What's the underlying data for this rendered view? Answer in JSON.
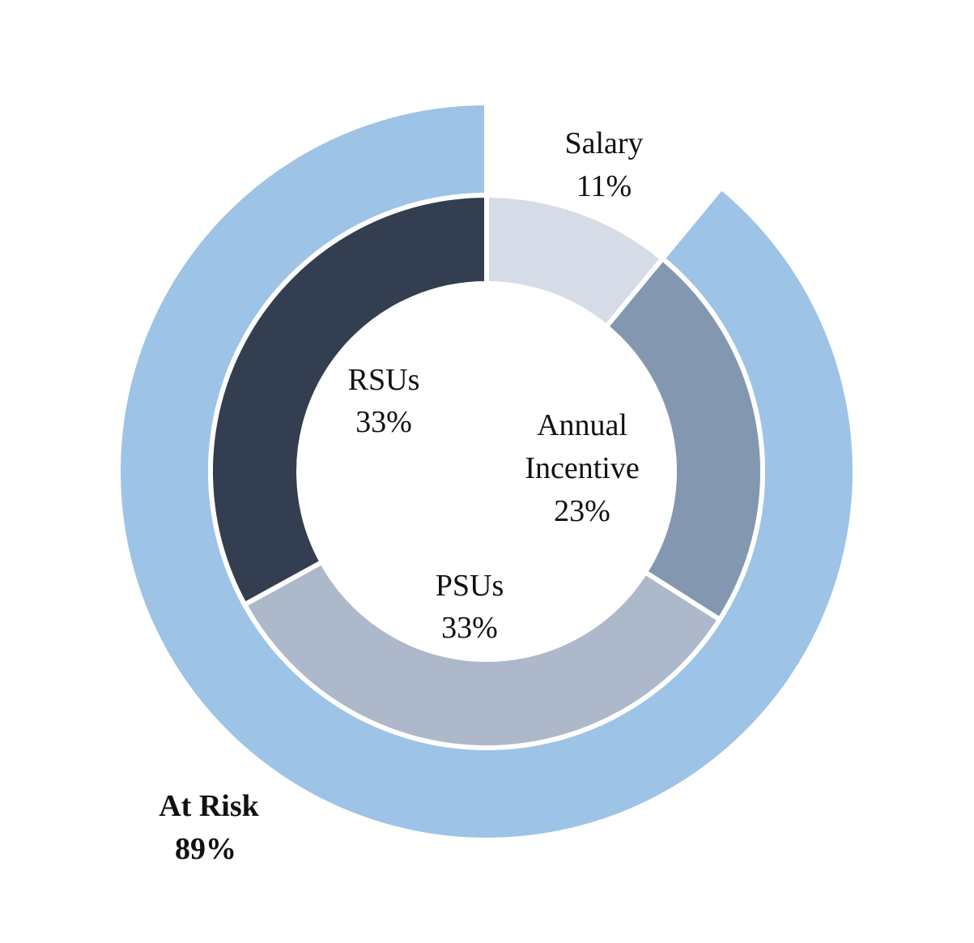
{
  "chart_data": {
    "type": "pie",
    "subtype": "nested-donut",
    "title": "",
    "rings": [
      {
        "name": "inner",
        "categories": [
          "Salary",
          "Annual Incentive",
          "PSUs",
          "RSUs"
        ],
        "values": [
          11,
          23,
          33,
          33
        ],
        "labels": [
          "11%",
          "23%",
          "33%",
          "33%"
        ],
        "colors": [
          "#d5dce7",
          "#8497b0",
          "#adb9ca",
          "#333f50"
        ]
      },
      {
        "name": "outer",
        "categories": [
          "Salary (not at risk)",
          "At Risk"
        ],
        "values": [
          11,
          89
        ],
        "labels": [
          "",
          "89%"
        ],
        "colors": [
          "#ffffff",
          "#9dc3e6"
        ]
      }
    ],
    "annotations": [
      {
        "text": "Salary",
        "value": "11%"
      },
      {
        "text": "Annual Incentive",
        "value": "23%"
      },
      {
        "text": "PSUs",
        "value": "33%"
      },
      {
        "text": "RSUs",
        "value": "33%"
      },
      {
        "text": "At Risk",
        "value": "89%",
        "bold": true
      }
    ],
    "legend": "none"
  },
  "labels": {
    "salary": {
      "name": "Salary",
      "pct": "11%"
    },
    "annual": {
      "name1": "Annual",
      "name2": "Incentive",
      "pct": "23%"
    },
    "psus": {
      "name": "PSUs",
      "pct": "33%"
    },
    "rsus": {
      "name": "RSUs",
      "pct": "33%"
    },
    "atrisk": {
      "name": "At Risk",
      "pct": "89%"
    }
  }
}
